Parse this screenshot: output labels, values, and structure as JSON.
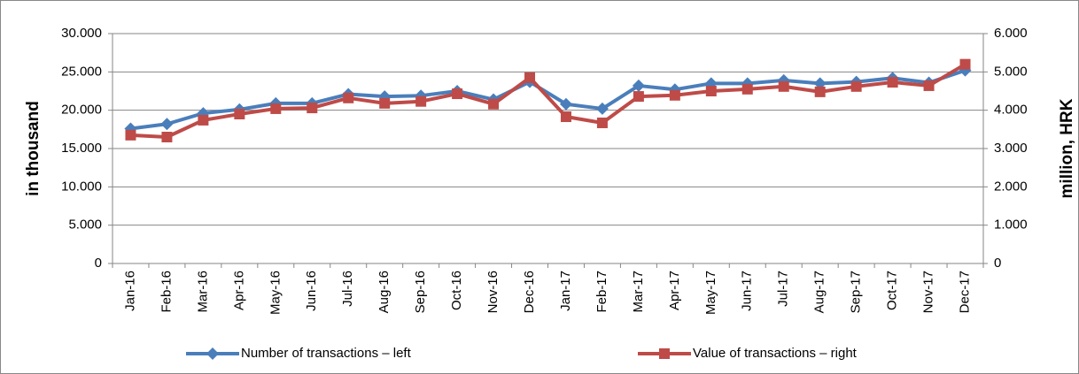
{
  "chart_data": {
    "type": "line",
    "categories": [
      "Jan-16",
      "Feb-16",
      "Mar-16",
      "Apr-16",
      "May-16",
      "Jun-16",
      "Jul-16",
      "Aug-16",
      "Sep-16",
      "Oct-16",
      "Nov-16",
      "Dec-16",
      "Jan-17",
      "Feb-17",
      "Mar-17",
      "Apr-17",
      "May-17",
      "Jun-17",
      "Jul-17",
      "Aug-17",
      "Sep-17",
      "Oct-17",
      "Nov-17",
      "Dec-17"
    ],
    "series": [
      {
        "name": "Number of transactions – left",
        "color": "#4a7ebb",
        "marker": "diamond",
        "values": [
          17600,
          18200,
          19600,
          20100,
          20900,
          20900,
          22100,
          21800,
          21900,
          22500,
          21400,
          23700,
          20800,
          20200,
          23200,
          22700,
          23500,
          23500,
          23900,
          23500,
          23700,
          24200,
          23600,
          25200
        ]
      },
      {
        "name": "Value of transactions – right",
        "color": "#be4b48",
        "marker": "square",
        "axis": "y2",
        "values": [
          3350,
          3300,
          3740,
          3900,
          4040,
          4060,
          4320,
          4180,
          4230,
          4430,
          4160,
          4850,
          3830,
          3670,
          4360,
          4390,
          4500,
          4550,
          4620,
          4480,
          4620,
          4730,
          4640,
          5200
        ]
      }
    ],
    "y_label": "in thousand",
    "y2_label": "million, HRK",
    "ylim": [
      0,
      30000
    ],
    "yticks": [
      0,
      {
        "value": 5000,
        "label": "5.000"
      },
      {
        "value": 10000,
        "label": "10.000"
      },
      {
        "value": 15000,
        "label": "15.000"
      },
      {
        "value": 20000,
        "label": "20.000"
      },
      {
        "value": 25000,
        "label": "25.000"
      },
      {
        "value": 30000,
        "label": "30.000"
      }
    ],
    "y2lim": [
      0,
      6000
    ],
    "y2ticks": [
      0,
      {
        "value": 1000,
        "label": "1.000"
      },
      {
        "value": 2000,
        "label": "2.000"
      },
      {
        "value": 3000,
        "label": "3.000"
      },
      {
        "value": 4000,
        "label": "4.000"
      },
      {
        "value": 5000,
        "label": "5.000"
      },
      {
        "value": 6000,
        "label": "6.000"
      }
    ],
    "grid": true,
    "legend": "bottom"
  }
}
